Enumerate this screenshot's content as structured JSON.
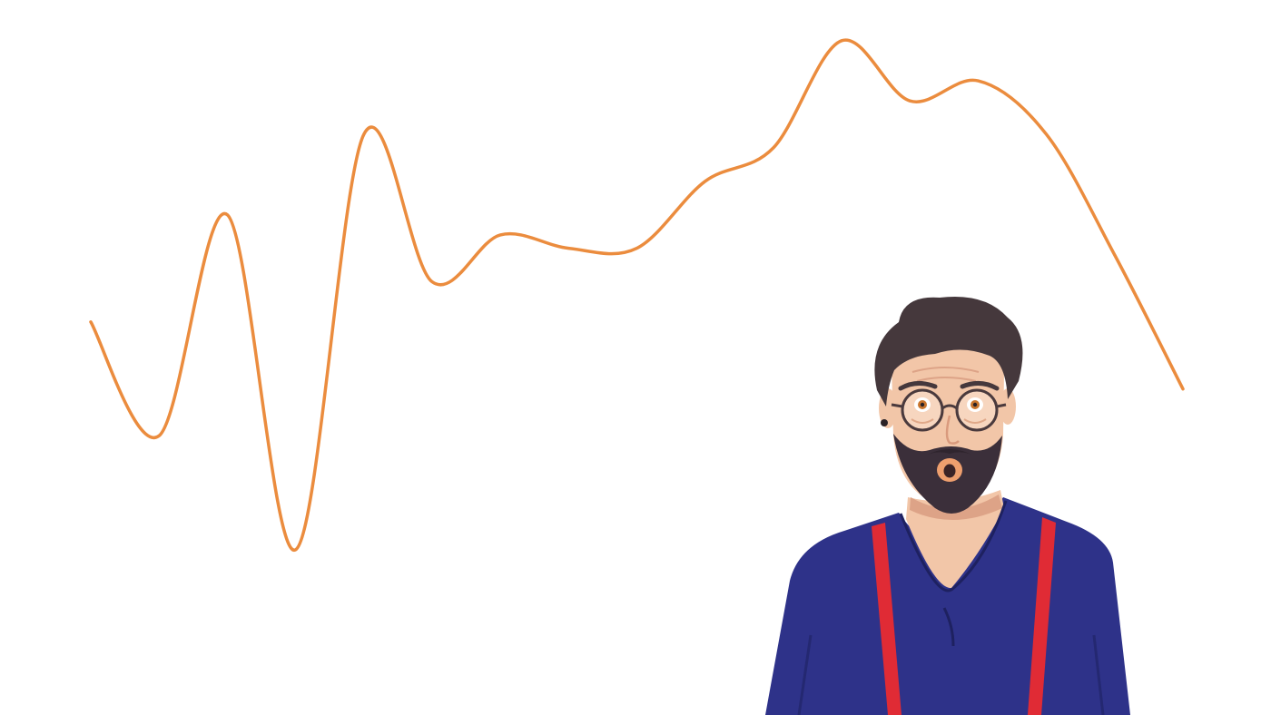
{
  "chart_data": {
    "type": "line",
    "title": "",
    "xlabel": "",
    "ylabel": "",
    "grid": false,
    "axes_visible": false,
    "legend": "none",
    "smooth": true,
    "x": [
      0,
      1,
      2,
      3,
      4,
      5,
      6,
      7,
      8,
      9,
      10,
      11,
      12,
      13,
      14,
      15,
      16
    ],
    "series": [
      {
        "values": [
          22,
          5,
          38,
          -12,
          50,
          28,
          35,
          33,
          33,
          43,
          48,
          64,
          55,
          58,
          50,
          32,
          12
        ],
        "color": "#EB8C3E"
      }
    ],
    "xlim": [
      0,
      16
    ],
    "ylim": [
      -15,
      66
    ]
  },
  "illustration": {
    "subject": "surprised-man-with-glasses-and-beard",
    "colors": {
      "shirt": "#2E3289",
      "suspenders": "#E02B35",
      "hair": "#45383C",
      "beard": "#3B2F3A",
      "skin": "#F2C6A8"
    }
  }
}
